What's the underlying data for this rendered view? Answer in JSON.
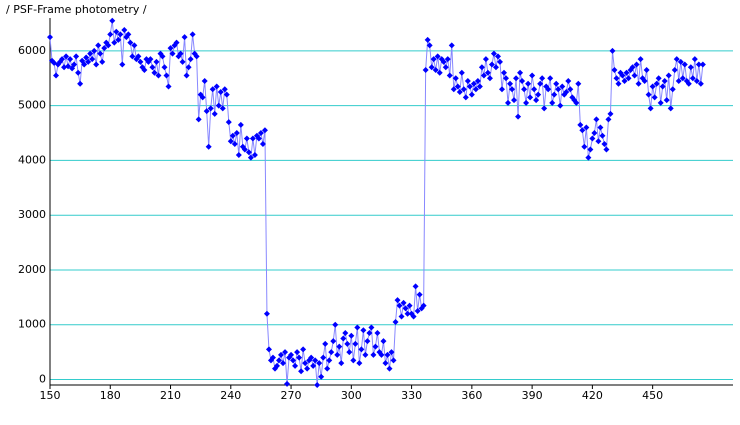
{
  "chart_data": {
    "type": "line",
    "title": "/ PSF-Frame photometry /",
    "xlim": [
      150,
      490
    ],
    "ylim": [
      -100,
      6600
    ],
    "xticks": [
      150,
      180,
      210,
      240,
      270,
      300,
      330,
      360,
      390,
      420,
      450
    ],
    "yticks": [
      0,
      1000,
      2000,
      3000,
      4000,
      5000,
      6000
    ],
    "grid": true,
    "grid_color": "#33cccc",
    "series": [
      {
        "color": "#0000ff",
        "line_color": "#8888ff",
        "x": [
          150,
          151,
          152,
          153,
          154,
          155,
          156,
          157,
          158,
          159,
          160,
          161,
          162,
          163,
          164,
          165,
          166,
          167,
          168,
          169,
          170,
          171,
          172,
          173,
          174,
          175,
          176,
          177,
          178,
          179,
          180,
          181,
          182,
          183,
          184,
          185,
          186,
          187,
          188,
          189,
          190,
          191,
          192,
          193,
          194,
          195,
          196,
          197,
          198,
          199,
          200,
          201,
          202,
          203,
          204,
          205,
          206,
          207,
          208,
          209,
          210,
          211,
          212,
          213,
          214,
          215,
          216,
          217,
          218,
          219,
          220,
          221,
          222,
          223,
          224,
          225,
          226,
          227,
          228,
          229,
          230,
          231,
          232,
          233,
          234,
          235,
          236,
          237,
          238,
          239,
          240,
          241,
          242,
          243,
          244,
          245,
          246,
          247,
          248,
          249,
          250,
          251,
          252,
          253,
          254,
          255,
          256,
          257,
          258,
          259,
          260,
          261,
          262,
          263,
          264,
          265,
          266,
          267,
          268,
          269,
          270,
          271,
          272,
          273,
          274,
          275,
          276,
          277,
          278,
          279,
          280,
          281,
          282,
          283,
          284,
          285,
          286,
          287,
          288,
          289,
          290,
          291,
          292,
          293,
          294,
          295,
          296,
          297,
          298,
          299,
          300,
          301,
          302,
          303,
          304,
          305,
          306,
          307,
          308,
          309,
          310,
          311,
          312,
          313,
          314,
          315,
          316,
          317,
          318,
          319,
          320,
          321,
          322,
          323,
          324,
          325,
          326,
          327,
          328,
          329,
          330,
          331,
          332,
          333,
          334,
          335,
          336,
          337,
          338,
          339,
          340,
          341,
          342,
          343,
          344,
          345,
          346,
          347,
          348,
          349,
          350,
          351,
          352,
          353,
          354,
          355,
          356,
          357,
          358,
          359,
          360,
          361,
          362,
          363,
          364,
          365,
          366,
          367,
          368,
          369,
          370,
          371,
          372,
          373,
          374,
          375,
          376,
          377,
          378,
          379,
          380,
          381,
          382,
          383,
          384,
          385,
          386,
          387,
          388,
          389,
          390,
          391,
          392,
          393,
          394,
          395,
          396,
          397,
          398,
          399,
          400,
          401,
          402,
          403,
          404,
          405,
          406,
          407,
          408,
          409,
          410,
          411,
          412,
          413,
          414,
          415,
          416,
          417,
          418,
          419,
          420,
          421,
          422,
          423,
          424,
          425,
          426,
          427,
          428,
          429,
          430,
          431,
          432,
          433,
          434,
          435,
          436,
          437,
          438,
          439,
          440,
          441,
          442,
          443,
          444,
          445,
          446,
          447,
          448,
          449,
          450,
          451,
          452,
          453,
          454,
          455,
          456,
          457,
          458,
          459,
          460,
          461,
          462,
          463,
          464,
          465,
          466,
          467,
          468,
          469,
          470,
          471,
          472,
          473,
          474,
          475
        ],
        "values": [
          6250,
          5820,
          5780,
          5550,
          5750,
          5800,
          5850,
          5700,
          5900,
          5720,
          5850,
          5680,
          5750,
          5900,
          5600,
          5400,
          5820,
          5750,
          5880,
          5800,
          5950,
          5850,
          6000,
          5750,
          6100,
          5950,
          5800,
          6050,
          6150,
          6100,
          6300,
          6550,
          6150,
          6350,
          6200,
          6300,
          5750,
          6380,
          6250,
          6300,
          6150,
          5900,
          6100,
          5850,
          5900,
          5800,
          5700,
          5650,
          5850,
          5800,
          5850,
          5700,
          5600,
          5800,
          5550,
          5950,
          5900,
          5700,
          5550,
          5350,
          6050,
          5950,
          6100,
          6150,
          5900,
          5950,
          5800,
          6250,
          5550,
          5700,
          5850,
          6300,
          5950,
          5900,
          4750,
          5200,
          5150,
          5450,
          4900,
          4250,
          4950,
          5300,
          4850,
          5350,
          5000,
          5250,
          4950,
          5300,
          5200,
          4700,
          4350,
          4450,
          4300,
          4500,
          4100,
          4650,
          4250,
          4200,
          4400,
          4150,
          4050,
          4400,
          4100,
          4450,
          4400,
          4500,
          4300,
          4550,
          1200,
          550,
          350,
          400,
          200,
          250,
          350,
          450,
          300,
          500,
          -80,
          400,
          450,
          350,
          250,
          500,
          400,
          150,
          550,
          300,
          200,
          350,
          400,
          250,
          350,
          -100,
          300,
          50,
          400,
          650,
          200,
          350,
          500,
          700,
          1000,
          450,
          600,
          300,
          750,
          850,
          650,
          500,
          800,
          350,
          650,
          950,
          300,
          550,
          900,
          450,
          700,
          850,
          950,
          450,
          600,
          850,
          500,
          450,
          700,
          300,
          450,
          200,
          500,
          350,
          1050,
          1450,
          1350,
          1150,
          1400,
          1300,
          1200,
          1350,
          1200,
          1150,
          1700,
          1250,
          1550,
          1300,
          1350,
          5650,
          6200,
          6100,
          5700,
          5850,
          5650,
          5900,
          5600,
          5850,
          5800,
          5700,
          5850,
          5550,
          6100,
          5300,
          5500,
          5350,
          5250,
          5600,
          5300,
          5150,
          5450,
          5350,
          5200,
          5400,
          5300,
          5450,
          5350,
          5700,
          5550,
          5850,
          5600,
          5500,
          5750,
          5950,
          5700,
          5900,
          5800,
          5300,
          5600,
          5500,
          5050,
          5400,
          5300,
          5100,
          5500,
          4800,
          5600,
          5450,
          5300,
          5050,
          5400,
          5150,
          5550,
          5300,
          5100,
          5200,
          5400,
          5500,
          4950,
          5350,
          5300,
          5500,
          5050,
          5200,
          5400,
          5300,
          5000,
          5350,
          5200,
          5250,
          5450,
          5300,
          5150,
          5100,
          5050,
          5400,
          4650,
          4550,
          4250,
          4600,
          4050,
          4200,
          4400,
          4500,
          4750,
          4350,
          4600,
          4450,
          4300,
          4200,
          4750,
          4850,
          6000,
          5650,
          5500,
          5400,
          5600,
          5550,
          5450,
          5600,
          5500,
          5650,
          5700,
          5550,
          5750,
          5400,
          5850,
          5500,
          5450,
          5650,
          5200,
          4950,
          5350,
          5150,
          5400,
          5500,
          5050,
          5350,
          5450,
          5100,
          5550,
          4950,
          5300,
          5650,
          5850,
          5450,
          5800,
          5500,
          5750,
          5450,
          5400,
          5700,
          5500,
          5850,
          5450,
          5750,
          5400,
          5750
        ]
      }
    ]
  }
}
